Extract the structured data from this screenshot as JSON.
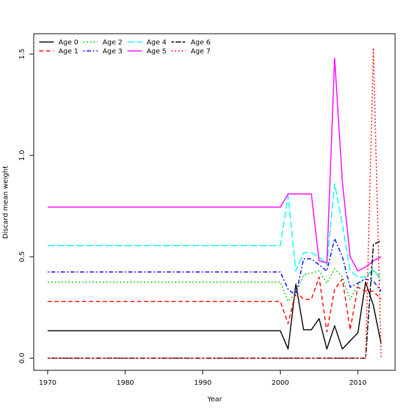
{
  "chart_data": {
    "type": "line",
    "title": "",
    "xlabel": "Year",
    "ylabel": "Discard mean weight",
    "xlim": [
      1968.2,
      2014.8
    ],
    "ylim": [
      -0.06,
      1.6
    ],
    "xticks": [
      "1970",
      "1980",
      "1990",
      "2000",
      "2010"
    ],
    "yticks": [
      "0.0",
      "0.5",
      "1.0",
      "1.5"
    ],
    "grid": false,
    "legend_position": "top-left",
    "x": [
      1970,
      1971,
      1972,
      1973,
      1974,
      1975,
      1976,
      1977,
      1978,
      1979,
      1980,
      1981,
      1982,
      1983,
      1984,
      1985,
      1986,
      1987,
      1988,
      1989,
      1990,
      1991,
      1992,
      1993,
      1994,
      1995,
      1996,
      1997,
      1998,
      1999,
      2000,
      2001,
      2002,
      2003,
      2004,
      2005,
      2006,
      2007,
      2008,
      2009,
      2010,
      2011,
      2012,
      2013
    ],
    "series": [
      {
        "name": "Age 0",
        "color": "#000000",
        "dash": "solid",
        "values": [
          0.135,
          0.135,
          0.135,
          0.135,
          0.135,
          0.135,
          0.135,
          0.135,
          0.135,
          0.135,
          0.135,
          0.135,
          0.135,
          0.135,
          0.135,
          0.135,
          0.135,
          0.135,
          0.135,
          0.135,
          0.135,
          0.135,
          0.135,
          0.135,
          0.135,
          0.135,
          0.135,
          0.135,
          0.135,
          0.135,
          0.135,
          0.045,
          0.365,
          0.14,
          0.14,
          0.195,
          0.045,
          0.16,
          0.045,
          0.085,
          0.125,
          0.375,
          0.26,
          0.07
        ]
      },
      {
        "name": "Age 1",
        "color": "#ff0000",
        "dash": "dashed",
        "values": [
          0.28,
          0.28,
          0.28,
          0.28,
          0.28,
          0.28,
          0.28,
          0.28,
          0.28,
          0.28,
          0.28,
          0.28,
          0.28,
          0.28,
          0.28,
          0.28,
          0.28,
          0.28,
          0.28,
          0.28,
          0.28,
          0.28,
          0.28,
          0.28,
          0.28,
          0.28,
          0.28,
          0.28,
          0.28,
          0.28,
          0.28,
          0.17,
          0.33,
          0.29,
          0.29,
          0.4,
          0.13,
          0.34,
          0.39,
          0.14,
          0.35,
          0.33,
          0.33,
          0.29
        ]
      },
      {
        "name": "Age 2",
        "color": "#00c000",
        "dash": "dotted",
        "values": [
          0.375,
          0.375,
          0.375,
          0.375,
          0.375,
          0.375,
          0.375,
          0.375,
          0.375,
          0.375,
          0.375,
          0.375,
          0.375,
          0.375,
          0.375,
          0.375,
          0.375,
          0.375,
          0.375,
          0.375,
          0.375,
          0.375,
          0.375,
          0.375,
          0.375,
          0.375,
          0.375,
          0.375,
          0.375,
          0.375,
          0.375,
          0.28,
          0.32,
          0.41,
          0.42,
          0.43,
          0.37,
          0.44,
          0.4,
          0.29,
          0.36,
          0.4,
          0.43,
          0.4
        ]
      },
      {
        "name": "Age 3",
        "color": "#0000ff",
        "dash": "dotdash",
        "values": [
          0.425,
          0.425,
          0.425,
          0.425,
          0.425,
          0.425,
          0.425,
          0.425,
          0.425,
          0.425,
          0.425,
          0.425,
          0.425,
          0.425,
          0.425,
          0.425,
          0.425,
          0.425,
          0.425,
          0.425,
          0.425,
          0.425,
          0.425,
          0.425,
          0.425,
          0.425,
          0.425,
          0.425,
          0.425,
          0.425,
          0.425,
          0.34,
          0.31,
          0.49,
          0.49,
          0.46,
          0.43,
          0.59,
          0.5,
          0.35,
          0.37,
          0.39,
          0.38,
          0.33
        ]
      },
      {
        "name": "Age 4",
        "color": "#00ffff",
        "dash": "longdash",
        "values": [
          0.555,
          0.555,
          0.555,
          0.555,
          0.555,
          0.555,
          0.555,
          0.555,
          0.555,
          0.555,
          0.555,
          0.555,
          0.555,
          0.555,
          0.555,
          0.555,
          0.555,
          0.555,
          0.555,
          0.555,
          0.555,
          0.555,
          0.555,
          0.555,
          0.555,
          0.555,
          0.555,
          0.555,
          0.555,
          0.555,
          0.555,
          0.8,
          0.43,
          0.52,
          0.52,
          0.5,
          0.46,
          0.86,
          0.66,
          0.43,
          0.4,
          0.4,
          0.44,
          0.38
        ]
      },
      {
        "name": "Age 5",
        "color": "#ff00ff",
        "dash": "solid",
        "values": [
          0.745,
          0.745,
          0.745,
          0.745,
          0.745,
          0.745,
          0.745,
          0.745,
          0.745,
          0.745,
          0.745,
          0.745,
          0.745,
          0.745,
          0.745,
          0.745,
          0.745,
          0.745,
          0.745,
          0.745,
          0.745,
          0.745,
          0.745,
          0.745,
          0.745,
          0.745,
          0.745,
          0.745,
          0.745,
          0.745,
          0.745,
          0.81,
          0.81,
          0.81,
          0.81,
          0.48,
          0.47,
          1.48,
          0.87,
          0.5,
          0.43,
          0.45,
          0.48,
          0.5
        ]
      },
      {
        "name": "Age 6",
        "color": "#000000",
        "dash": "twodash",
        "values": [
          0,
          0,
          0,
          0,
          0,
          0,
          0,
          0,
          0,
          0,
          0,
          0,
          0,
          0,
          0,
          0,
          0,
          0,
          0,
          0,
          0,
          0,
          0,
          0,
          0,
          0,
          0,
          0,
          0,
          0,
          0,
          0,
          0,
          0,
          0,
          0,
          0,
          0,
          0,
          0,
          0,
          0,
          0.56,
          0.58
        ]
      },
      {
        "name": "Age 7",
        "color": "#ff0000",
        "dash": "dotted",
        "values": [
          0,
          0,
          0,
          0,
          0,
          0,
          0,
          0,
          0,
          0,
          0,
          0,
          0,
          0,
          0,
          0,
          0,
          0,
          0,
          0,
          0,
          0,
          0,
          0,
          0,
          0,
          0,
          0,
          0,
          0,
          0,
          0,
          0,
          0,
          0,
          0,
          0,
          0,
          0,
          0,
          0,
          0,
          1.53,
          0
        ]
      }
    ]
  }
}
